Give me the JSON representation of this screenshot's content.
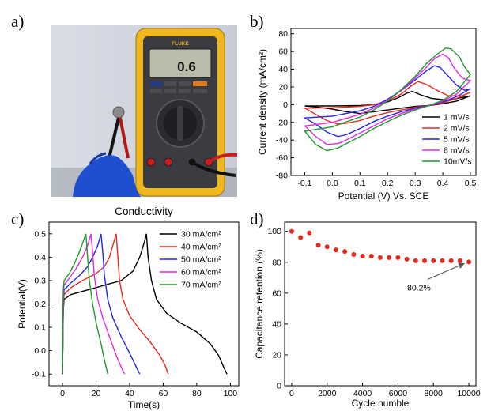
{
  "figure": {
    "panel_labels": [
      "a)",
      "b)",
      "c)",
      "d)"
    ],
    "photo": {
      "caption": "Conductivity",
      "meter_reading": "0.6",
      "brand": "FLUKE"
    }
  },
  "chart_data": [
    {
      "panel": "b",
      "type": "line",
      "xlabel": "Potential (V) Vs. SCE",
      "ylabel": "Current density (mA/cm²)",
      "xlim": [
        -0.15,
        0.52
      ],
      "ylim": [
        -80,
        86
      ],
      "xticks": [
        -0.1,
        0.0,
        0.1,
        0.2,
        0.3,
        0.4,
        0.5
      ],
      "xtick_labels": [
        "-0.1",
        "0.0",
        "0.1",
        "0.2",
        "0.3",
        "0.4",
        "0.5"
      ],
      "yticks": [
        -80,
        -60,
        -40,
        -20,
        0,
        20,
        40,
        60,
        80
      ],
      "ytick_labels": [
        "-80",
        "-60",
        "-40",
        "-20",
        "0",
        "20",
        "40",
        "60",
        "80"
      ],
      "legend_position": "lower-right",
      "series": [
        {
          "name": "1 mV/s",
          "color": "#000000",
          "anodic": {
            "x": [
              -0.1,
              0.0,
              0.1,
              0.15,
              0.2,
              0.24,
              0.27,
              0.29,
              0.32,
              0.36,
              0.42,
              0.5
            ],
            "y": [
              -1.5,
              -1.5,
              -1,
              0,
              3,
              8,
              13,
              15,
              11,
              7,
              5,
              10
            ]
          },
          "cathodic": {
            "x": [
              0.5,
              0.45,
              0.4,
              0.35,
              0.3,
              0.25,
              0.2,
              0.15,
              0.1,
              0.05,
              0.0,
              -0.05,
              -0.1
            ],
            "y": [
              10,
              4,
              1,
              -1,
              -2,
              -4,
              -6,
              -8,
              -10,
              -8,
              -5,
              -3,
              -1.5
            ]
          }
        },
        {
          "name": "2 mV/s",
          "color": "#e8281e",
          "anodic": {
            "x": [
              -0.1,
              0.0,
              0.1,
              0.15,
              0.2,
              0.25,
              0.28,
              0.31,
              0.34,
              0.38,
              0.42,
              0.47,
              0.5
            ],
            "y": [
              -4,
              -3.5,
              -2,
              0,
              4,
              12,
              20,
              26,
              23,
              16,
              10,
              10,
              14
            ]
          },
          "cathodic": {
            "x": [
              0.5,
              0.45,
              0.4,
              0.35,
              0.3,
              0.25,
              0.2,
              0.15,
              0.1,
              0.05,
              0.02,
              -0.02,
              -0.06,
              -0.1
            ],
            "y": [
              14,
              7,
              2,
              -1,
              -3,
              -6,
              -9,
              -13,
              -18,
              -21,
              -22,
              -18,
              -11,
              -4
            ]
          }
        },
        {
          "name": "5 mV/s",
          "color": "#2323e6",
          "anodic": {
            "x": [
              -0.1,
              0.0,
              0.1,
              0.15,
              0.2,
              0.25,
              0.3,
              0.34,
              0.37,
              0.39,
              0.42,
              0.45,
              0.48,
              0.5
            ],
            "y": [
              -15,
              -13,
              -7,
              -2,
              6,
              16,
              28,
              38,
              44,
              42,
              32,
              22,
              16,
              18
            ]
          },
          "cathodic": {
            "x": [
              0.5,
              0.45,
              0.4,
              0.35,
              0.3,
              0.25,
              0.2,
              0.15,
              0.1,
              0.05,
              0.02,
              -0.02,
              -0.06,
              -0.1
            ],
            "y": [
              18,
              9,
              3,
              -1,
              -4,
              -8,
              -13,
              -19,
              -27,
              -34,
              -36,
              -31,
              -22,
              -15
            ]
          }
        },
        {
          "name": "8 mV/s",
          "color": "#e627e6",
          "anodic": {
            "x": [
              -0.1,
              0.0,
              0.1,
              0.15,
              0.2,
              0.25,
              0.3,
              0.34,
              0.37,
              0.4,
              0.42,
              0.44,
              0.47,
              0.5
            ],
            "y": [
              -24,
              -20,
              -11,
              -4,
              5,
              16,
              30,
              42,
              52,
              57,
              53,
              42,
              30,
              27
            ]
          },
          "cathodic": {
            "x": [
              0.5,
              0.45,
              0.4,
              0.35,
              0.3,
              0.25,
              0.2,
              0.15,
              0.1,
              0.05,
              0.02,
              -0.02,
              -0.06,
              -0.1
            ],
            "y": [
              27,
              12,
              4,
              -1,
              -5,
              -10,
              -16,
              -24,
              -32,
              -40,
              -44,
              -45,
              -36,
              -24
            ]
          }
        },
        {
          "name": "10mV/s",
          "color": "#1f9a2b",
          "anodic": {
            "x": [
              -0.1,
              0.0,
              0.1,
              0.15,
              0.2,
              0.25,
              0.3,
              0.34,
              0.38,
              0.41,
              0.43,
              0.46,
              0.48,
              0.5
            ],
            "y": [
              -30,
              -25,
              -14,
              -6,
              4,
              17,
              32,
              46,
              57,
              64,
              63,
              54,
              42,
              34
            ]
          },
          "cathodic": {
            "x": [
              0.5,
              0.45,
              0.4,
              0.35,
              0.3,
              0.25,
              0.2,
              0.15,
              0.1,
              0.05,
              0.02,
              -0.02,
              -0.06,
              -0.1
            ],
            "y": [
              34,
              15,
              5,
              -1,
              -6,
              -12,
              -19,
              -27,
              -36,
              -44,
              -49,
              -52,
              -45,
              -30
            ]
          }
        }
      ]
    },
    {
      "panel": "c",
      "type": "line",
      "xlabel": "Time(s)",
      "ylabel": "Potential(V)",
      "xlim": [
        -8,
        105
      ],
      "ylim": [
        -0.15,
        0.55
      ],
      "xticks": [
        0,
        20,
        40,
        60,
        80,
        100
      ],
      "xtick_labels": [
        "0",
        "20",
        "40",
        "60",
        "80",
        "100"
      ],
      "yticks": [
        -0.1,
        0.0,
        0.1,
        0.2,
        0.3,
        0.4,
        0.5
      ],
      "ytick_labels": [
        "-0.1",
        "0.0",
        "0.1",
        "0.2",
        "0.3",
        "0.4",
        "0.5"
      ],
      "legend_position": "top-right",
      "series": [
        {
          "name": "30 mA/cm²",
          "color": "#000000",
          "x": [
            0,
            0.5,
            1,
            5,
            15,
            25,
            35,
            42,
            46,
            49,
            50,
            51,
            53,
            56,
            62,
            70,
            80,
            88,
            93,
            96,
            98
          ],
          "y": [
            -0.1,
            0.18,
            0.22,
            0.24,
            0.26,
            0.28,
            0.3,
            0.34,
            0.4,
            0.47,
            0.5,
            0.4,
            0.3,
            0.22,
            0.16,
            0.12,
            0.08,
            0.03,
            -0.02,
            -0.07,
            -0.1
          ]
        },
        {
          "name": "40 mA/cm²",
          "color": "#e8281e",
          "x": [
            0,
            0.5,
            1,
            5,
            12,
            20,
            25,
            28,
            30,
            32,
            33,
            34,
            36,
            40,
            46,
            52,
            58,
            61,
            63
          ],
          "y": [
            -0.1,
            0.2,
            0.24,
            0.27,
            0.3,
            0.33,
            0.36,
            0.4,
            0.45,
            0.5,
            0.4,
            0.3,
            0.22,
            0.15,
            0.09,
            0.04,
            -0.02,
            -0.06,
            -0.1
          ]
        },
        {
          "name": "50 mA/cm²",
          "color": "#2323e6",
          "x": [
            0,
            0.5,
            1,
            5,
            10,
            15,
            18,
            21,
            23,
            24,
            25,
            27,
            30,
            35,
            40,
            44,
            46
          ],
          "y": [
            -0.1,
            0.22,
            0.26,
            0.29,
            0.32,
            0.36,
            0.4,
            0.45,
            0.5,
            0.42,
            0.32,
            0.22,
            0.14,
            0.06,
            -0.01,
            -0.07,
            -0.1
          ]
        },
        {
          "name": "60 mA/cm²",
          "color": "#e627e6",
          "x": [
            0,
            0.5,
            1,
            4,
            8,
            12,
            15,
            17,
            18,
            19,
            21,
            24,
            28,
            32,
            35,
            37
          ],
          "y": [
            -0.1,
            0.24,
            0.28,
            0.31,
            0.35,
            0.4,
            0.45,
            0.5,
            0.42,
            0.32,
            0.22,
            0.14,
            0.06,
            -0.02,
            -0.07,
            -0.1
          ]
        },
        {
          "name": "70 mA/cm²",
          "color": "#1f9a2b",
          "x": [
            0,
            0.5,
            1,
            4,
            7,
            10,
            12,
            14,
            15,
            16,
            18,
            20,
            23,
            25,
            27
          ],
          "y": [
            -0.1,
            0.26,
            0.3,
            0.33,
            0.37,
            0.42,
            0.46,
            0.5,
            0.4,
            0.3,
            0.2,
            0.12,
            0.03,
            -0.04,
            -0.1
          ]
        }
      ]
    },
    {
      "panel": "d",
      "type": "scatter",
      "xlabel": "Cycle numble",
      "ylabel": "Capacitance retention (%)",
      "xlim": [
        -400,
        10400
      ],
      "ylim": [
        0,
        106
      ],
      "xticks": [
        0,
        2000,
        4000,
        6000,
        8000,
        10000
      ],
      "xtick_labels": [
        "0",
        "2000",
        "4000",
        "6000",
        "8000",
        "10000"
      ],
      "yticks": [
        0,
        20,
        40,
        60,
        80,
        100
      ],
      "ytick_labels": [
        "0",
        "20",
        "40",
        "60",
        "80",
        "100"
      ],
      "color": "#e8281e",
      "x": [
        0,
        500,
        1000,
        1500,
        2000,
        2500,
        3000,
        3500,
        4000,
        4500,
        5000,
        5500,
        6000,
        6500,
        7000,
        7500,
        8000,
        8500,
        9000,
        9500,
        10000
      ],
      "y": [
        100,
        96,
        99,
        91,
        90,
        88,
        87,
        85,
        84,
        84,
        83,
        83,
        83,
        82,
        81,
        81,
        81,
        81,
        81,
        81,
        80.2
      ],
      "annotation": {
        "text": "80.2%",
        "x": 10000,
        "y": 80.2
      }
    }
  ]
}
